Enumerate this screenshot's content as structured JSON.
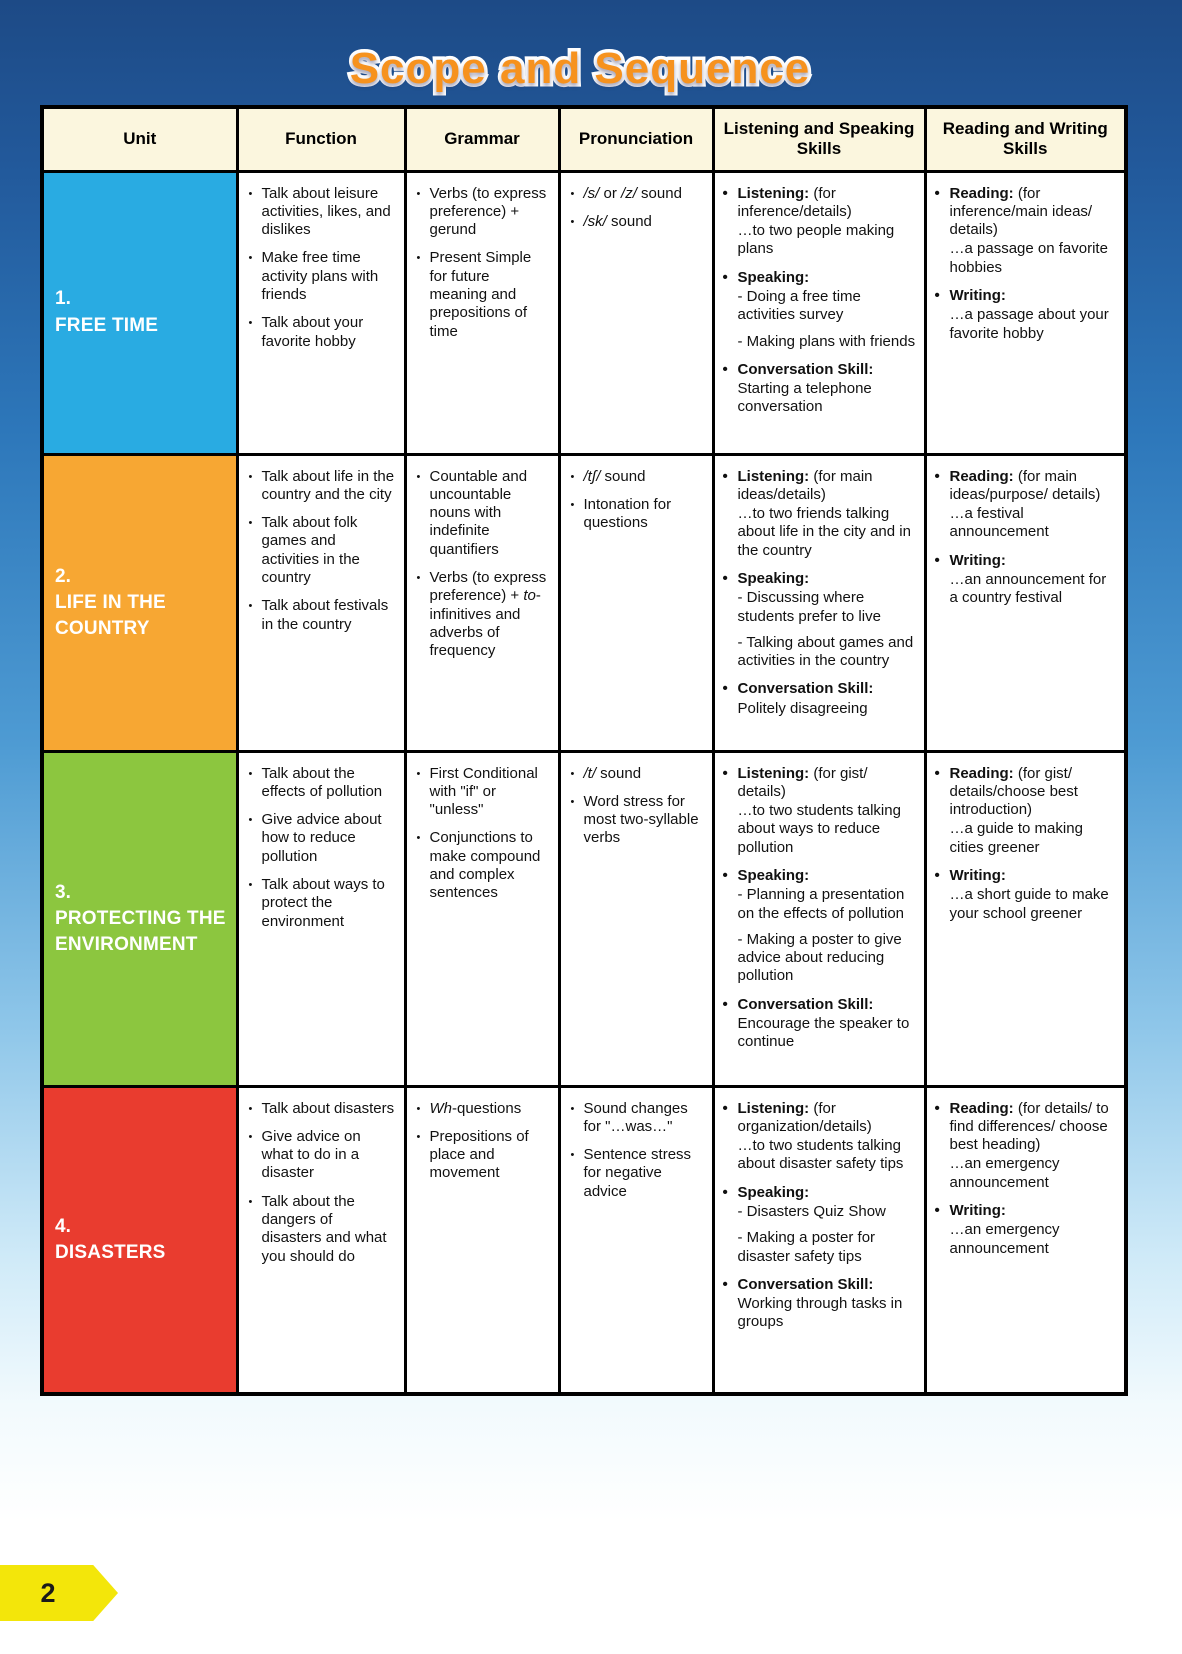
{
  "page": {
    "title": "Scope and Sequence",
    "page_number": "2"
  },
  "colors": {
    "unit1_blue": "#29ABE2",
    "unit2_orange": "#F7A733",
    "unit3_green": "#8CC63F",
    "unit4_red": "#E93C2F",
    "header_cream": "#FBF6DE",
    "title_orange": "#F6921E",
    "tab_yellow": "#F3E60A"
  },
  "table": {
    "headers": [
      "Unit",
      "Function",
      "Grammar",
      "Pronunciation",
      "Listening and Speaking Skills",
      "Reading and Writing Skills"
    ],
    "rows": [
      {
        "unit_number": "1.",
        "unit_title": "FREE TIME",
        "color": "#29ABE2",
        "function": [
          "Talk about leisure activities, likes, and dislikes",
          "Make free time activity plans with friends",
          "Talk about your favorite hobby"
        ],
        "grammar": [
          "Verbs (to express preference) + gerund",
          "Present Simple for future meaning and prepositions of time"
        ],
        "pronunciation": [
          "*/s/* or */z/* sound",
          "*/sk/* sound"
        ],
        "listening_speaking": [
          [
            "**Listening:** (for inference/details)",
            "…to two people making plans"
          ],
          [
            "**Speaking:**",
            "- Doing a free time activities survey",
            "- Making plans with friends"
          ],
          [
            "**Conversation Skill:**",
            "Starting a telephone conversation"
          ]
        ],
        "reading_writing": [
          [
            "**Reading:** (for inference/main ideas/ details)",
            "…a passage on favorite hobbies"
          ],
          [
            "**Writing:**",
            "…a passage about your favorite hobby"
          ]
        ]
      },
      {
        "unit_number": "2.",
        "unit_title": "LIFE IN THE COUNTRY",
        "color": "#F7A733",
        "function": [
          "Talk about life in the country and the city",
          "Talk about folk games and activities in the country",
          "Talk about festivals in the country"
        ],
        "grammar": [
          "Countable and uncountable nouns with indefinite quantifiers",
          "Verbs (to express preference) + *to*-infinitives and adverbs of frequency"
        ],
        "pronunciation": [
          "*/tʃ/* sound",
          "Intonation for questions"
        ],
        "listening_speaking": [
          [
            "**Listening:** (for main ideas/details)",
            "…to two friends talking about life in the city and in the country"
          ],
          [
            "**Speaking:**",
            "- Discussing where students prefer to live",
            "- Talking about games and activities in the country"
          ],
          [
            "**Conversation Skill:**",
            "Politely disagreeing"
          ]
        ],
        "reading_writing": [
          [
            "**Reading:** (for main ideas/purpose/ details)",
            "…a festival announcement"
          ],
          [
            "**Writing:**",
            "…an announcement for a country festival"
          ]
        ]
      },
      {
        "unit_number": "3.",
        "unit_title": "PROTECTING THE ENVIRONMENT",
        "color": "#8CC63F",
        "function": [
          "Talk about the effects of pollution",
          "Give advice about how to reduce pollution",
          "Talk about ways to protect the environment"
        ],
        "grammar": [
          "First Conditional with \"if\" or \"unless\"",
          "Conjunctions to make compound and complex sentences"
        ],
        "pronunciation": [
          "*/t/* sound",
          "Word stress for most two-syllable verbs"
        ],
        "listening_speaking": [
          [
            "**Listening:** (for gist/ details)",
            "…to two students talking about ways to reduce pollution"
          ],
          [
            "**Speaking:**",
            "- Planning a presentation on the effects of pollution",
            "- Making a poster to give advice about reducing pollution"
          ],
          [
            "**Conversation Skill:**",
            "Encourage the speaker to continue"
          ]
        ],
        "reading_writing": [
          [
            "**Reading:** (for gist/ details/choose best introduction)",
            "…a guide to making cities greener"
          ],
          [
            "**Writing:**",
            "…a short guide to make your school greener"
          ]
        ]
      },
      {
        "unit_number": "4.",
        "unit_title": "DISASTERS",
        "color": "#E93C2F",
        "function": [
          "Talk about disasters",
          "Give advice on what to do in a disaster",
          "Talk about the dangers of disasters and what you should do"
        ],
        "grammar": [
          "*Wh*-questions",
          "Prepositions of place and movement"
        ],
        "pronunciation": [
          "Sound changes for \"…was…\"",
          "Sentence stress for negative advice"
        ],
        "listening_speaking": [
          [
            "**Listening:** (for organization/details)",
            "…to two students talking about disaster safety tips"
          ],
          [
            "**Speaking:**",
            "- Disasters Quiz Show",
            "- Making a poster for disaster safety tips"
          ],
          [
            "**Conversation Skill:**",
            "Working through tasks in groups"
          ]
        ],
        "reading_writing": [
          [
            "**Reading:** (for details/ to find differences/ choose best heading)",
            "…an emergency announcement"
          ],
          [
            "**Writing:**",
            "…an emergency announcement"
          ]
        ]
      }
    ]
  }
}
